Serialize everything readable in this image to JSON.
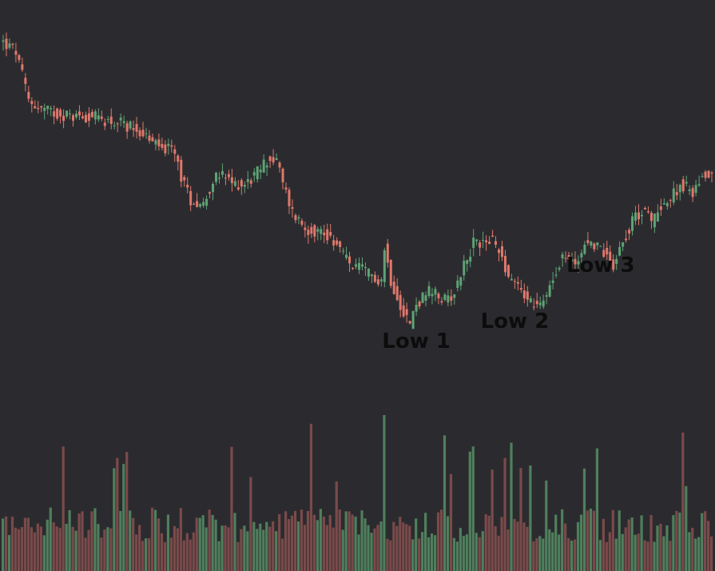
{
  "chart_data": {
    "type": "candlestick",
    "x_range": [
      0,
      223
    ],
    "price_range": [
      5,
      100
    ],
    "volume_range": [
      0,
      100
    ],
    "grid": false,
    "colors": {
      "background": "#2b2b2f",
      "up": "#5fa375",
      "down": "#e0786b",
      "volume_up": "#4f7f5c",
      "volume_down": "#7a4a4a",
      "annotation": "#0c0c0c"
    },
    "trend_path": [
      [
        0,
        98
      ],
      [
        5,
        95
      ],
      [
        9,
        83
      ],
      [
        12,
        81
      ],
      [
        16,
        80
      ],
      [
        22,
        79
      ],
      [
        28,
        79
      ],
      [
        33,
        78
      ],
      [
        38,
        77
      ],
      [
        43,
        76
      ],
      [
        47,
        73
      ],
      [
        51,
        71
      ],
      [
        55,
        70
      ],
      [
        57,
        64
      ],
      [
        60,
        58
      ],
      [
        64,
        57
      ],
      [
        67,
        63
      ],
      [
        70,
        64
      ],
      [
        73,
        62
      ],
      [
        77,
        62
      ],
      [
        80,
        64
      ],
      [
        84,
        68
      ],
      [
        87,
        68
      ],
      [
        89,
        62
      ],
      [
        92,
        55
      ],
      [
        96,
        51
      ],
      [
        101,
        50
      ],
      [
        105,
        48
      ],
      [
        110,
        42
      ],
      [
        115,
        40
      ],
      [
        120,
        38
      ],
      [
        121,
        46
      ],
      [
        123,
        38
      ],
      [
        126,
        32
      ],
      [
        129,
        27
      ],
      [
        131,
        32
      ],
      [
        135,
        35
      ],
      [
        140,
        33
      ],
      [
        143,
        35
      ],
      [
        146,
        42
      ],
      [
        149,
        47
      ],
      [
        154,
        48
      ],
      [
        157,
        46
      ],
      [
        160,
        39
      ],
      [
        163,
        37
      ],
      [
        166,
        33
      ],
      [
        170,
        31
      ],
      [
        174,
        39
      ],
      [
        177,
        44
      ],
      [
        181,
        42
      ],
      [
        184,
        47
      ],
      [
        187,
        47
      ],
      [
        190,
        45
      ],
      [
        193,
        42
      ],
      [
        196,
        48
      ],
      [
        200,
        54
      ],
      [
        203,
        56
      ],
      [
        205,
        52
      ],
      [
        208,
        57
      ],
      [
        211,
        58
      ],
      [
        214,
        62
      ],
      [
        218,
        60
      ],
      [
        221,
        64
      ],
      [
        223,
        65
      ]
    ],
    "annotations": [
      {
        "label": "Low 1",
        "x": 130,
        "y": 21
      },
      {
        "label": "Low 2",
        "x": 161,
        "y": 26
      },
      {
        "label": "Low 3",
        "x": 188,
        "y": 40
      }
    ]
  }
}
